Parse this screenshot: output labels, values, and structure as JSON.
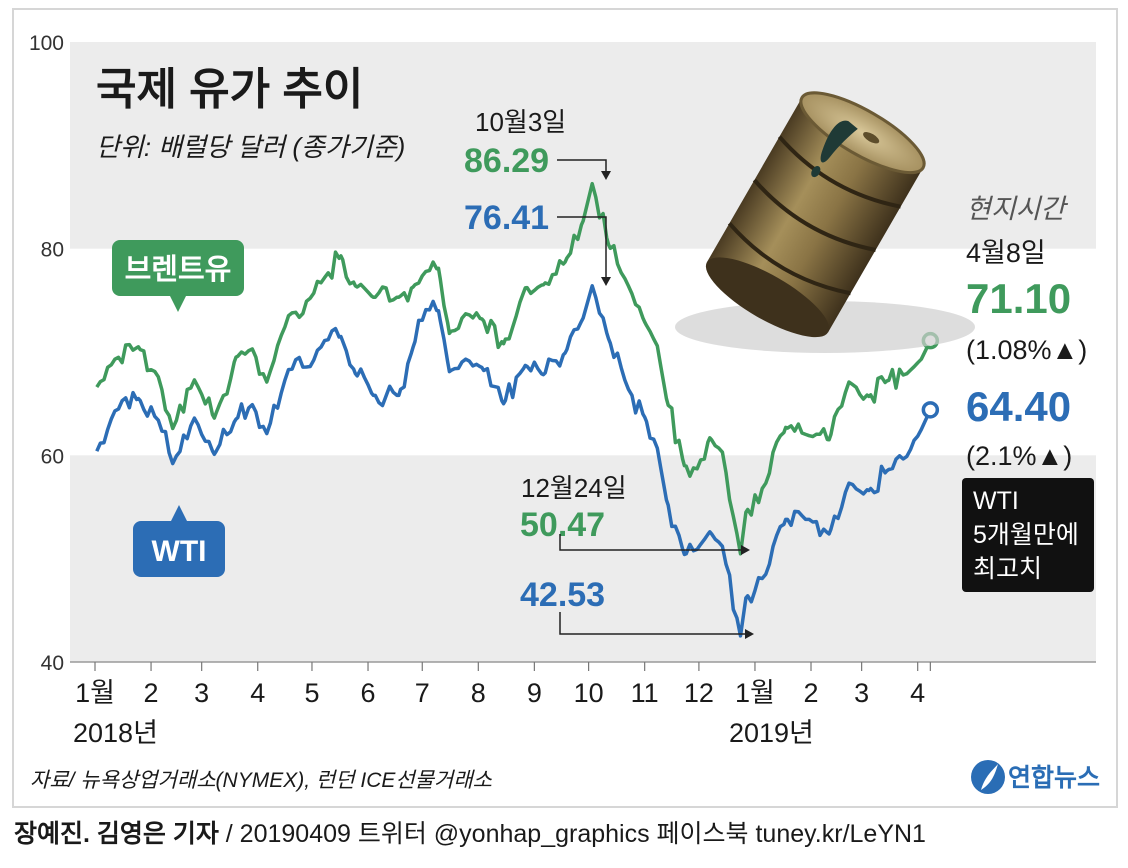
{
  "chart_data": {
    "type": "line",
    "title": "국제 유가 추이",
    "subtitle": "단위: 배럴당 달러 (종가기준)",
    "y_ticks": [
      "100",
      "80",
      "60",
      "40"
    ],
    "ylim": [
      40,
      100
    ],
    "x_month_labels": [
      "1월",
      "2",
      "3",
      "4",
      "5",
      "6",
      "7",
      "8",
      "9",
      "10",
      "11",
      "12",
      "1월",
      "2",
      "3",
      "4"
    ],
    "x_year_labels": [
      "2018년",
      "2019년"
    ],
    "xlim": [
      "2018-01-01",
      "2019-04-15"
    ],
    "series": [
      {
        "name": "브렌트유",
        "color": "#3f9a5c",
        "x": [
          "2018-01-02",
          "2018-01-12",
          "2018-01-25",
          "2018-02-05",
          "2018-02-13",
          "2018-02-25",
          "2018-03-08",
          "2018-03-20",
          "2018-03-29",
          "2018-04-06",
          "2018-04-18",
          "2018-04-30",
          "2018-05-08",
          "2018-05-17",
          "2018-05-25",
          "2018-06-04",
          "2018-06-18",
          "2018-06-26",
          "2018-07-03",
          "2018-07-10",
          "2018-07-16",
          "2018-07-25",
          "2018-08-03",
          "2018-08-15",
          "2018-08-27",
          "2018-09-06",
          "2018-09-18",
          "2018-09-28",
          "2018-10-03",
          "2018-10-12",
          "2018-10-23",
          "2018-11-01",
          "2018-11-08",
          "2018-11-13",
          "2018-11-23",
          "2018-11-30",
          "2018-12-07",
          "2018-12-14",
          "2018-12-24",
          "2018-12-27",
          "2019-01-07",
          "2019-01-18",
          "2019-01-31",
          "2019-02-11",
          "2019-02-22",
          "2019-03-05",
          "2019-03-15",
          "2019-03-26",
          "2019-04-03",
          "2019-04-08"
        ],
        "values": [
          66.6,
          69.3,
          70.5,
          67.6,
          62.6,
          67.3,
          63.6,
          69.5,
          70.3,
          67.1,
          73.5,
          75.2,
          77.2,
          79.3,
          76.4,
          75.3,
          75.3,
          76.3,
          77.8,
          78.1,
          71.8,
          73.7,
          73.2,
          70.8,
          76.2,
          76.5,
          78.7,
          82.7,
          86.29,
          80.4,
          76.4,
          72.9,
          70.6,
          65.5,
          59.0,
          58.7,
          61.7,
          60.3,
          50.47,
          54.5,
          57.3,
          62.7,
          61.9,
          61.5,
          67.1,
          65.7,
          67.2,
          67.9,
          69.3,
          71.1
        ]
      },
      {
        "name": "WTI",
        "color": "#2c6db5",
        "x": [
          "2018-01-02",
          "2018-01-12",
          "2018-01-25",
          "2018-02-05",
          "2018-02-13",
          "2018-02-25",
          "2018-03-08",
          "2018-03-20",
          "2018-03-29",
          "2018-04-06",
          "2018-04-18",
          "2018-04-30",
          "2018-05-08",
          "2018-05-17",
          "2018-05-25",
          "2018-06-04",
          "2018-06-18",
          "2018-06-26",
          "2018-07-03",
          "2018-07-10",
          "2018-07-16",
          "2018-07-25",
          "2018-08-03",
          "2018-08-15",
          "2018-08-27",
          "2018-09-06",
          "2018-09-18",
          "2018-09-28",
          "2018-10-03",
          "2018-10-12",
          "2018-10-23",
          "2018-11-01",
          "2018-11-08",
          "2018-11-13",
          "2018-11-23",
          "2018-11-30",
          "2018-12-07",
          "2018-12-14",
          "2018-12-24",
          "2018-12-27",
          "2019-01-07",
          "2019-01-18",
          "2019-01-31",
          "2019-02-11",
          "2019-02-22",
          "2019-03-05",
          "2019-03-15",
          "2019-03-26",
          "2019-04-03",
          "2019-04-08"
        ],
        "values": [
          60.4,
          64.3,
          65.5,
          63.4,
          59.2,
          63.6,
          60.1,
          63.5,
          64.9,
          62.1,
          68.3,
          68.6,
          71.1,
          71.5,
          67.9,
          65.8,
          65.8,
          70.5,
          74.1,
          74.0,
          68.1,
          69.3,
          68.5,
          65.0,
          68.7,
          67.8,
          69.9,
          73.3,
          76.41,
          71.3,
          66.4,
          63.7,
          60.7,
          55.7,
          50.4,
          50.9,
          52.6,
          51.2,
          42.53,
          46.2,
          48.5,
          53.8,
          53.8,
          52.4,
          57.3,
          56.6,
          58.5,
          59.9,
          62.5,
          64.4
        ]
      }
    ],
    "annotations": {
      "peak_date": "10월3일",
      "peak_brent": "86.29",
      "peak_wti": "76.41",
      "low_date": "12월24일",
      "low_brent": "50.47",
      "low_wti": "42.53",
      "local_time": "현지시간",
      "latest_date": "4월8일",
      "latest_brent": "71.10",
      "latest_brent_change": "(1.08%▲)",
      "latest_wti": "64.40",
      "latest_wti_change": "(2.1%▲)",
      "wti_note_lines": [
        "WTI",
        "5개월만에",
        "최고치"
      ]
    },
    "grid": true,
    "legend": "inline labels"
  },
  "source": "자료/ 뉴욕상업거래소(NYMEX), 런던 ICE선물거래소",
  "logo_text": "연합뉴스",
  "byline": {
    "authors": "장예진. 김영은 기자",
    "rest": " / 20190409   트위터 @yonhap_graphics  페이스북 tuney.kr/LeYN1"
  },
  "colors": {
    "brent": "#3f9a5c",
    "wti": "#2c6db5",
    "band": "#ececec",
    "logo": "#2a6db5"
  },
  "icons": [
    "oil-barrel-icon",
    "yonhap-logo-icon"
  ]
}
